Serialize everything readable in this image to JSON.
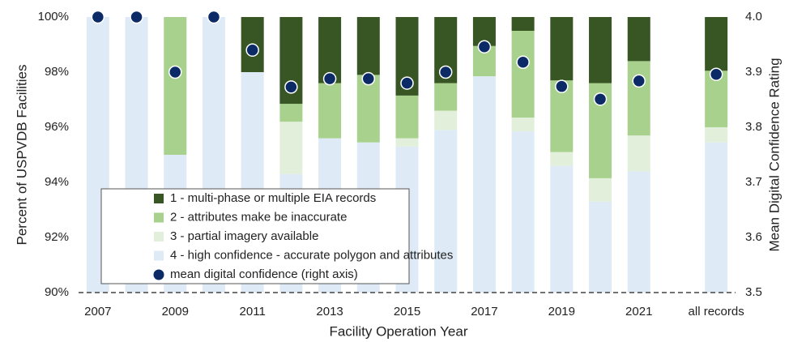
{
  "chart_data": {
    "type": "bar",
    "stacked": true,
    "xlabel": "Facility Operation Year",
    "ylabel": "Percent of USPVDB Facilities",
    "y2label": "Mean Digital Confidence Rating",
    "categories": [
      "2007",
      null,
      "2009",
      null,
      "2011",
      null,
      "2013",
      null,
      "2015",
      null,
      "2017",
      null,
      "2019",
      null,
      "2021",
      null,
      "all records"
    ],
    "series": [
      {
        "name": "1 - multi-phase or multiple EIA records",
        "color": "#375623",
        "values": [
          0,
          0,
          0,
          0,
          2.0,
          3.15,
          2.4,
          2.1,
          2.85,
          2.4,
          1.05,
          0.5,
          2.3,
          2.4,
          1.6,
          null,
          1.95
        ]
      },
      {
        "name": "2 - attributes make be inaccurate",
        "color": "#a9d18e",
        "values": [
          0,
          0,
          5.0,
          0,
          0,
          0.65,
          2.0,
          2.45,
          1.55,
          1.0,
          1.1,
          3.15,
          2.6,
          3.45,
          2.7,
          null,
          2.05
        ]
      },
      {
        "name": "3 - partial imagery available",
        "color": "#e2efda",
        "values": [
          0,
          0,
          0,
          0,
          0,
          1.9,
          0,
          0,
          0.3,
          0.7,
          0,
          0.5,
          0.5,
          0.85,
          1.3,
          null,
          0.55
        ]
      },
      {
        "name": "4 - high confidence - accurate polygon and attributes",
        "color": "#deebf7",
        "values": [
          100,
          100,
          95.0,
          100,
          98.0,
          94.3,
          95.6,
          95.45,
          95.3,
          95.9,
          97.85,
          95.85,
          94.6,
          93.3,
          94.4,
          null,
          95.45
        ]
      },
      {
        "name": "mean digital confidence (right axis)",
        "color": "#0b2a66",
        "axis": "y2",
        "marker": "circle",
        "values": [
          4.0,
          4.0,
          3.9,
          4.0,
          3.94,
          3.873,
          3.888,
          3.888,
          3.88,
          3.9,
          3.946,
          3.918,
          3.874,
          3.851,
          3.884,
          null,
          3.896
        ]
      }
    ],
    "ylim": [
      90,
      100
    ],
    "yticks": [
      {
        "value": 90,
        "label": "90%"
      },
      {
        "value": 92,
        "label": "92%"
      },
      {
        "value": 94,
        "label": "94%"
      },
      {
        "value": 96,
        "label": "96%"
      },
      {
        "value": 98,
        "label": "98%"
      },
      {
        "value": 100,
        "label": "100%"
      }
    ],
    "y2lim": [
      3.5,
      4.0
    ],
    "y2ticks": [
      3.5,
      3.6,
      3.7,
      3.8,
      3.9,
      {
        "value": 4.0,
        "label": "4.0"
      }
    ],
    "grid": false,
    "legend": "lower left"
  }
}
